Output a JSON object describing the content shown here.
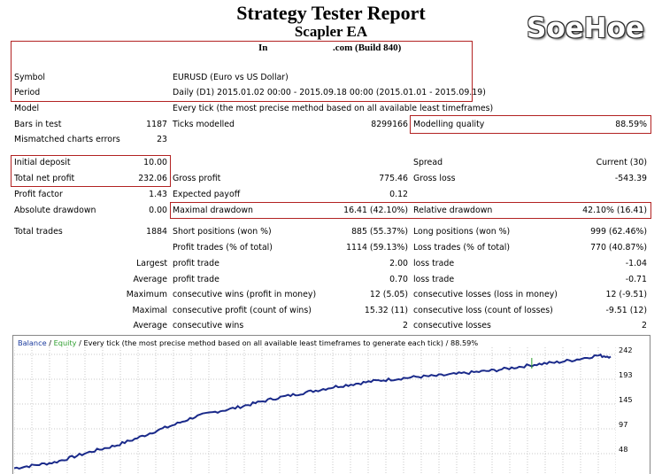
{
  "header": {
    "title": "Strategy Tester Report",
    "subtitle": "Scapler EA",
    "server": "In",
    "build": ".com (Build 840)",
    "logo": "SoeHoe"
  },
  "info": [
    {
      "label": "Symbol",
      "value": "EURUSD (Euro vs US Dollar)"
    },
    {
      "label": "Period",
      "value": "Daily (D1) 2015.01.02 00:00 - 2015.09.18 00:00 (2015.01.01 - 2015.09.19)"
    },
    {
      "label": "Model",
      "value": "Every tick (the most precise method based on all available least timeframes)"
    }
  ],
  "stats": {
    "bars_in_test_label": "Bars in test",
    "bars_in_test": "1187",
    "ticks_modelled_label": "Ticks modelled",
    "ticks_modelled": "8299166",
    "modelling_quality_label": "Modelling quality",
    "modelling_quality": "88.59%",
    "mismatched_label": "Mismatched charts errors",
    "mismatched": "23",
    "initial_deposit_label": "Initial deposit",
    "initial_deposit": "10.00",
    "spread_label": "Spread",
    "spread": "Current (30)",
    "total_net_profit_label": "Total net profit",
    "total_net_profit": "232.06",
    "gross_profit_label": "Gross profit",
    "gross_profit": "775.46",
    "gross_loss_label": "Gross loss",
    "gross_loss": "-543.39",
    "profit_factor_label": "Profit factor",
    "profit_factor": "1.43",
    "expected_payoff_label": "Expected payoff",
    "expected_payoff": "0.12",
    "absolute_drawdown_label": "Absolute drawdown",
    "absolute_drawdown": "0.00",
    "maximal_drawdown_label": "Maximal drawdown",
    "maximal_drawdown": "16.41 (42.10%)",
    "relative_drawdown_label": "Relative drawdown",
    "relative_drawdown": "42.10% (16.41)",
    "total_trades_label": "Total trades",
    "total_trades": "1884",
    "short_positions_label": "Short positions (won %)",
    "short_positions": "885 (55.37%)",
    "long_positions_label": "Long positions (won %)",
    "long_positions": "999 (62.46%)",
    "profit_trades_label": "Profit trades (% of total)",
    "profit_trades": "1114 (59.13%)",
    "loss_trades_label": "Loss trades (% of total)",
    "loss_trades": "770 (40.87%)"
  },
  "detail_rows": [
    {
      "prefix": "Largest",
      "l_label": "profit trade",
      "l_value": "2.00",
      "r_label": "loss trade",
      "r_value": "-1.04"
    },
    {
      "prefix": "Average",
      "l_label": "profit trade",
      "l_value": "0.70",
      "r_label": "loss trade",
      "r_value": "-0.71"
    },
    {
      "prefix": "Maximum",
      "l_label": "consecutive wins (profit in money)",
      "l_value": "12 (5.05)",
      "r_label": "consecutive losses (loss in money)",
      "r_value": "12 (-9.51)"
    },
    {
      "prefix": "Maximal",
      "l_label": "consecutive profit (count of wins)",
      "l_value": "15.32 (11)",
      "r_label": "consecutive loss (count of losses)",
      "r_value": "-9.51 (12)"
    },
    {
      "prefix": "Average",
      "l_label": "consecutive wins",
      "l_value": "2",
      "r_label": "consecutive losses",
      "r_value": "2"
    }
  ],
  "chart_data": {
    "type": "line",
    "legend": [
      "Balance",
      "Equity"
    ],
    "header_rest": " / Every tick (the most precise method based on all available least timeframes to generate each tick) / 88.59%",
    "y_ticks": [
      "242",
      "193",
      "145",
      "97",
      "48"
    ],
    "colors": {
      "balance": "#1a2a8a",
      "equity": "#2e9e2e"
    },
    "series": [
      {
        "name": "Balance",
        "x": [
          0,
          40,
          80,
          120,
          160,
          200,
          240,
          280,
          320,
          360,
          400,
          440,
          480,
          520,
          560,
          600,
          640,
          680,
          720,
          760,
          800,
          840,
          880,
          920,
          960,
          1000,
          1040,
          1080,
          1120,
          1160,
          1187
        ],
        "y": [
          12,
          18,
          24,
          36,
          48,
          58,
          72,
          88,
          102,
          118,
          128,
          136,
          146,
          156,
          164,
          172,
          180,
          186,
          192,
          196,
          200,
          202,
          206,
          210,
          214,
          220,
          226,
          230,
          236,
          244,
          242
        ]
      }
    ]
  }
}
